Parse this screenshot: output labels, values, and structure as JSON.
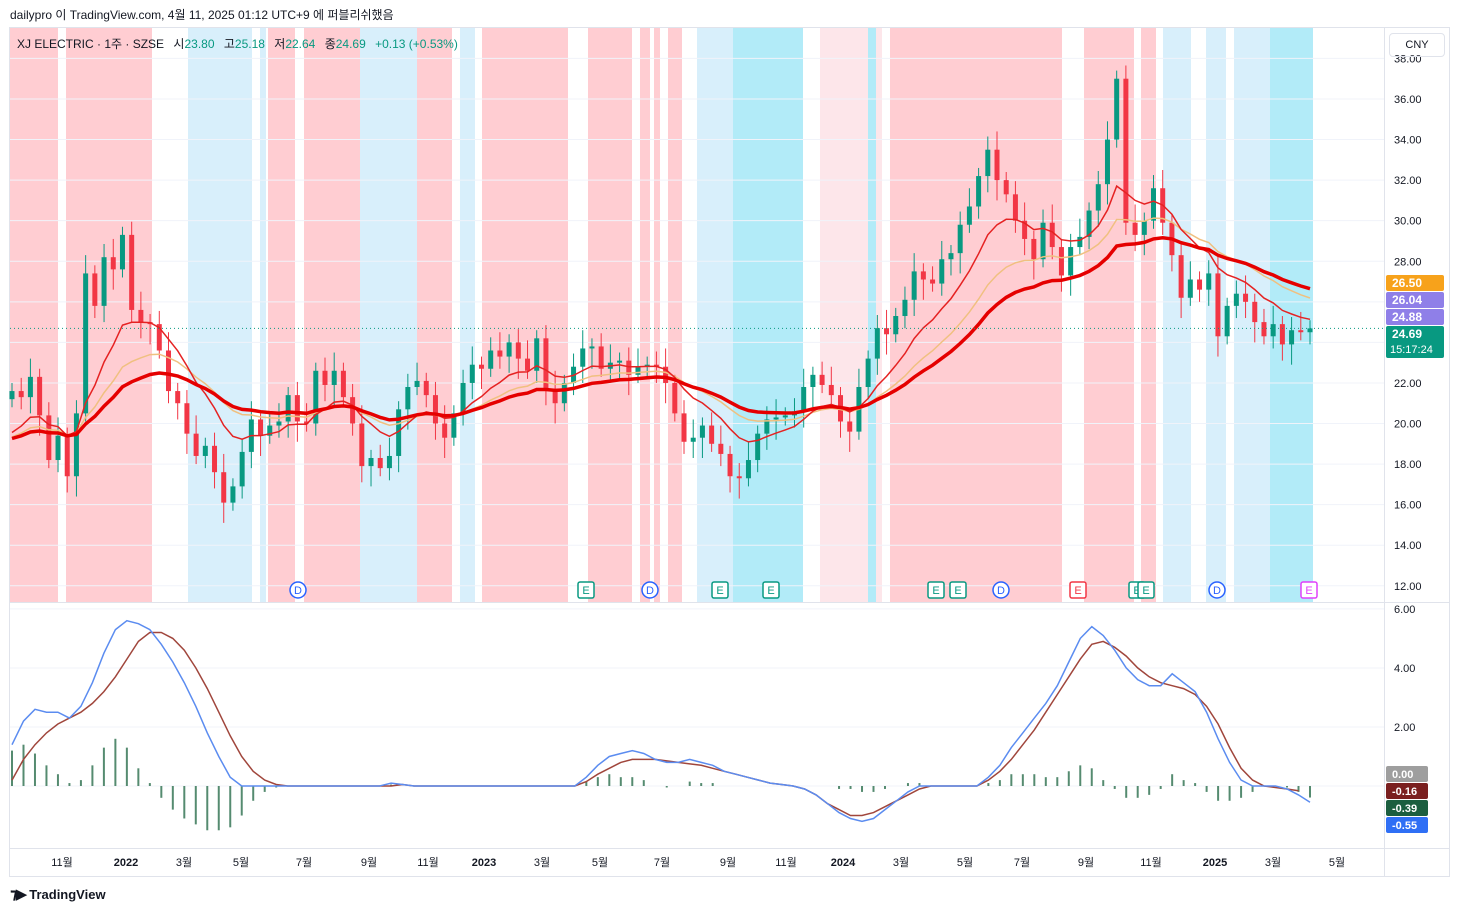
{
  "header": {
    "text": "dailypro 이 TradingView.com, 4월 11, 2025 01:12 UTC+9 에 퍼블리쉬했음"
  },
  "legend": {
    "symbol": "XJ ELECTRIC · 1주 · SZSE",
    "open_label": "시",
    "open": "23.80",
    "high_label": "고",
    "high": "25.18",
    "low_label": "저",
    "low": "22.64",
    "close_label": "종",
    "close": "24.69",
    "change": "+0.13 (+0.53%)"
  },
  "currency": "CNY",
  "brand": {
    "name": "TradingView"
  },
  "colors": {
    "up": "#089981",
    "down": "#f23645",
    "bg_red": "#ffcdd2",
    "bg_blue": "#d8effb",
    "bg_cyan": "#b2ebf8",
    "bg_pink": "#fde6ea",
    "macd_line": "#5b8cf0",
    "signal_line": "#a0463c",
    "hist": "#558b70",
    "ema_fast": "#e52222",
    "ema_slow": "#e50000",
    "ema_mid": "#f0c080"
  },
  "chart_data": [
    {
      "type": "candlestick",
      "pane": "price",
      "yticks": [
        "38.00",
        "36.00",
        "34.00",
        "32.00",
        "30.00",
        "28.00",
        "26.00",
        "24.00",
        "22.00",
        "20.00",
        "18.00",
        "16.00",
        "14.00",
        "12.00"
      ],
      "ylim": [
        11.2,
        39.5
      ],
      "xticks": [
        "11월",
        "2022",
        "3월",
        "5월",
        "7월",
        "9월",
        "11월",
        "2023",
        "3월",
        "5월",
        "7월",
        "9월",
        "11월",
        "2024",
        "3월",
        "5월",
        "7월",
        "9월",
        "11월",
        "2025",
        "3월",
        "5월"
      ],
      "price_labels": [
        {
          "text": "26.50",
          "value": 26.5,
          "color": "#f7a21b"
        },
        {
          "text": "26.04",
          "value": 26.04,
          "color": "#8f7fe8"
        },
        {
          "text": "24.88",
          "value": 24.88,
          "color": "#8f7fe8"
        },
        {
          "text": "24.69",
          "value": 24.69,
          "color": "#089981"
        }
      ],
      "countdown": "15:17:24",
      "events": [
        "D",
        "E",
        "D",
        "E",
        "E",
        "E",
        "E",
        "D",
        "E",
        "E",
        "E",
        "D",
        "E"
      ],
      "closes": [
        21.6,
        21.3,
        22.3,
        20.4,
        18.2,
        19.4,
        17.4,
        20.5,
        27.4,
        25.8,
        28.2,
        27.6,
        29.3,
        25.6,
        25.0,
        24.9,
        23.6,
        21.6,
        21.0,
        19.5,
        18.4,
        18.9,
        17.6,
        16.1,
        16.9,
        18.6,
        20.2,
        19.4,
        19.9,
        20.1,
        21.4,
        20.1,
        20.0,
        22.6,
        21.9,
        22.6,
        21.3,
        20.0,
        17.9,
        18.3,
        17.8,
        18.4,
        20.7,
        21.8,
        22.1,
        21.4,
        20.0,
        19.3,
        20.5,
        22.0,
        22.9,
        22.7,
        23.6,
        23.3,
        24.0,
        23.2,
        22.6,
        24.2,
        21.7,
        21.0,
        22.0,
        22.8,
        23.7,
        23.8,
        22.7,
        23.0,
        23.1,
        22.4,
        22.8,
        22.9,
        22.8,
        22.0,
        20.5,
        19.1,
        19.3,
        19.9,
        19.0,
        18.5,
        17.4,
        17.3,
        18.2,
        19.5,
        20.2,
        20.3,
        20.4,
        20.6,
        21.8,
        22.4,
        21.9,
        21.4,
        20.1,
        19.6,
        21.8,
        23.2,
        24.7,
        24.4,
        25.3,
        26.1,
        27.5,
        27.1,
        26.9,
        28.1,
        28.4,
        29.8,
        30.7,
        32.2,
        33.5,
        32.0,
        31.3,
        30.0,
        29.1,
        28.1,
        29.9,
        28.7,
        27.3,
        28.7,
        29.2,
        30.5,
        31.8,
        34.0,
        37.0,
        29.9,
        29.3,
        30.0,
        31.6,
        29.9,
        28.3,
        26.2,
        27.1,
        26.6,
        27.4,
        24.3,
        25.8,
        26.4,
        26.0,
        25.0,
        24.3,
        24.9,
        23.9,
        24.6,
        24.5,
        24.69
      ]
    },
    {
      "type": "line",
      "pane": "macd",
      "yticks": [
        "6.00",
        "4.00",
        "2.00",
        "0.00"
      ],
      "ylim": [
        -2.1,
        6.2
      ],
      "value_labels": [
        {
          "text": "0.00",
          "value": 0.0,
          "color": "#9e9e9e"
        },
        {
          "text": "-0.16",
          "value": -0.16,
          "color": "#7a1f1f"
        },
        {
          "text": "-0.39",
          "value": -0.39,
          "color": "#1b5e3f"
        },
        {
          "text": "-0.55",
          "value": -0.55,
          "color": "#2f6ff5"
        }
      ],
      "series": [
        {
          "values": [
            1.4,
            2.2,
            2.6,
            2.5,
            2.5,
            2.3,
            2.7,
            3.5,
            4.5,
            5.3,
            5.6,
            5.5,
            5.3,
            4.8,
            4.2,
            3.5,
            2.7,
            1.8,
            1.0,
            0.3,
            0.0,
            0,
            0,
            0,
            0,
            0,
            0,
            0,
            0,
            0,
            0,
            0,
            0,
            0.1,
            0.05,
            0,
            0,
            0,
            0,
            0,
            0,
            0,
            0,
            0,
            0,
            0,
            0,
            0,
            0,
            0,
            0.3,
            0.7,
            1.0,
            1.1,
            1.2,
            1.1,
            0.9,
            0.8,
            0.8,
            0.9,
            0.8,
            0.7,
            0.5,
            0.4,
            0.3,
            0.2,
            0.1,
            0.05,
            0,
            -0.1,
            -0.3,
            -0.6,
            -0.9,
            -1.1,
            -1.2,
            -1.1,
            -0.8,
            -0.5,
            -0.2,
            0,
            0,
            0,
            0,
            0,
            0,
            0.3,
            0.7,
            1.3,
            1.8,
            2.3,
            2.8,
            3.4,
            4.2,
            5.0,
            5.4,
            5.1,
            4.6,
            4.0,
            3.6,
            3.4,
            3.4,
            3.8,
            3.5,
            3.2,
            2.5,
            1.6,
            0.8,
            0.2,
            0,
            0,
            0,
            -0.1,
            -0.3,
            -0.55
          ]
        },
        {
          "values": [
            0.2,
            0.9,
            1.4,
            1.8,
            2.1,
            2.3,
            2.5,
            2.8,
            3.2,
            3.7,
            4.3,
            4.9,
            5.2,
            5.2,
            5.0,
            4.6,
            4.0,
            3.3,
            2.5,
            1.7,
            1.0,
            0.5,
            0.2,
            0.05,
            0,
            0,
            0,
            0,
            0,
            0,
            0,
            0,
            0,
            0,
            0.05,
            0,
            0,
            0,
            0,
            0,
            0,
            0,
            0,
            0,
            0,
            0,
            0,
            0,
            0,
            0,
            0.15,
            0.4,
            0.6,
            0.8,
            0.9,
            0.9,
            0.9,
            0.85,
            0.8,
            0.75,
            0.7,
            0.6,
            0.5,
            0.4,
            0.3,
            0.2,
            0.1,
            0.05,
            0,
            -0.1,
            -0.3,
            -0.6,
            -0.8,
            -1.0,
            -1.0,
            -0.9,
            -0.7,
            -0.5,
            -0.3,
            -0.1,
            0,
            0,
            0,
            0,
            0,
            0.2,
            0.5,
            0.9,
            1.4,
            1.9,
            2.5,
            3.1,
            3.7,
            4.3,
            4.8,
            4.9,
            4.7,
            4.4,
            4.0,
            3.7,
            3.5,
            3.4,
            3.3,
            3.1,
            2.7,
            2.1,
            1.3,
            0.6,
            0.2,
            0.0,
            -0.05,
            -0.1,
            -0.16
          ]
        }
      ],
      "histogram": [
        1.2,
        1.4,
        1.1,
        0.7,
        0.4,
        0.1,
        0.2,
        0.7,
        1.3,
        1.6,
        1.3,
        0.6,
        0.1,
        -0.4,
        -0.8,
        -1.1,
        -1.3,
        -1.5,
        -1.5,
        -1.4,
        -1.0,
        -0.5,
        -0.2,
        -0.05,
        0,
        0,
        0,
        0,
        0,
        0,
        0,
        0,
        0,
        0.05,
        0,
        0,
        0,
        0,
        0,
        0,
        0,
        0,
        0,
        0,
        0,
        0,
        0,
        0,
        0,
        0,
        0.15,
        0.3,
        0.4,
        0.3,
        0.3,
        0.2,
        0,
        -0.05,
        0,
        0.15,
        0.1,
        0.1,
        0,
        0,
        0,
        0,
        0,
        0,
        0,
        0,
        0,
        0,
        -0.1,
        -0.1,
        -0.2,
        -0.2,
        -0.1,
        0,
        0.1,
        0.1,
        0,
        0,
        0,
        0,
        0,
        0.1,
        0.2,
        0.4,
        0.4,
        0.4,
        0.3,
        0.3,
        0.5,
        0.7,
        0.6,
        0.2,
        -0.1,
        -0.4,
        -0.4,
        -0.3,
        -0.1,
        0.4,
        0.2,
        0.1,
        -0.2,
        -0.5,
        -0.5,
        -0.4,
        -0.2,
        0,
        0,
        -0.05,
        -0.2,
        -0.39
      ]
    }
  ]
}
